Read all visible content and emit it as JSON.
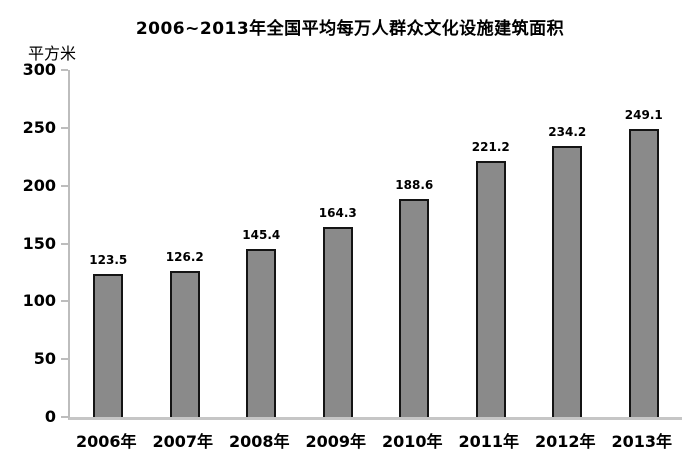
{
  "chart_data": {
    "type": "bar",
    "title": "2006~2013年全国平均每万人群众文化设施建筑面积",
    "xlabel": "",
    "ylabel": "平方米",
    "categories": [
      "2006年",
      "2007年",
      "2008年",
      "2009年",
      "2010年",
      "2011年",
      "2012年",
      "2013年"
    ],
    "values": [
      123.5,
      126.2,
      145.4,
      164.3,
      188.6,
      221.2,
      234.2,
      249.1
    ],
    "data_labels": [
      "123.5",
      "126.2",
      "145.4",
      "164.3",
      "188.6",
      "221.2",
      "234.2",
      "249.1"
    ],
    "ylim": [
      0,
      300
    ],
    "y_tick_interval": 50,
    "y_tick_labels": [
      "300",
      "250",
      "200",
      "150",
      "100",
      "50",
      "0"
    ],
    "grid": false,
    "legend": "none",
    "bar_color": "#8a8a8a",
    "bar_border_color": "#141414",
    "axis_color": "#bdbdbd",
    "text_color": "#000000",
    "background_color": "#ffffff"
  }
}
